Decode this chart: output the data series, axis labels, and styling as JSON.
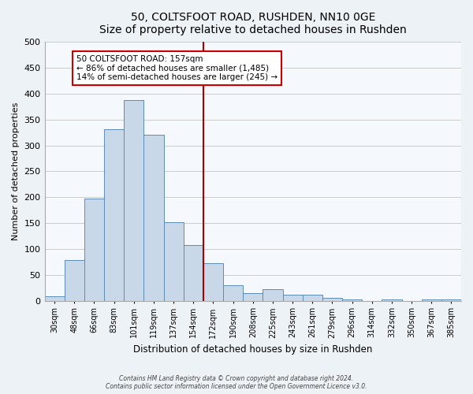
{
  "title": "50, COLTSFOOT ROAD, RUSHDEN, NN10 0GE",
  "subtitle": "Size of property relative to detached houses in Rushden",
  "xlabel": "Distribution of detached houses by size in Rushden",
  "ylabel": "Number of detached properties",
  "bar_labels": [
    "30sqm",
    "48sqm",
    "66sqm",
    "83sqm",
    "101sqm",
    "119sqm",
    "137sqm",
    "154sqm",
    "172sqm",
    "190sqm",
    "208sqm",
    "225sqm",
    "243sqm",
    "261sqm",
    "279sqm",
    "296sqm",
    "314sqm",
    "332sqm",
    "350sqm",
    "367sqm",
    "385sqm"
  ],
  "bar_values": [
    8,
    78,
    198,
    332,
    388,
    320,
    152,
    107,
    73,
    30,
    15,
    22,
    11,
    11,
    5,
    3,
    0,
    2,
    0,
    3,
    2
  ],
  "bar_color": "#c8d8e8",
  "bar_edge_color": "#5b8db8",
  "vline_x_index": 7,
  "vline_color": "#aa0000",
  "annotation_title": "50 COLTSFOOT ROAD: 157sqm",
  "annotation_line1": "← 86% of detached houses are smaller (1,485)",
  "annotation_line2": "14% of semi-detached houses are larger (245) →",
  "annotation_box_color": "#ffffff",
  "annotation_box_edge": "#cc0000",
  "ylim": [
    0,
    500
  ],
  "yticks": [
    0,
    50,
    100,
    150,
    200,
    250,
    300,
    350,
    400,
    450,
    500
  ],
  "footer1": "Contains HM Land Registry data © Crown copyright and database right 2024.",
  "footer2": "Contains public sector information licensed under the Open Government Licence v3.0.",
  "bg_color": "#edf2f7",
  "plot_bg_color": "#f5f8fc"
}
